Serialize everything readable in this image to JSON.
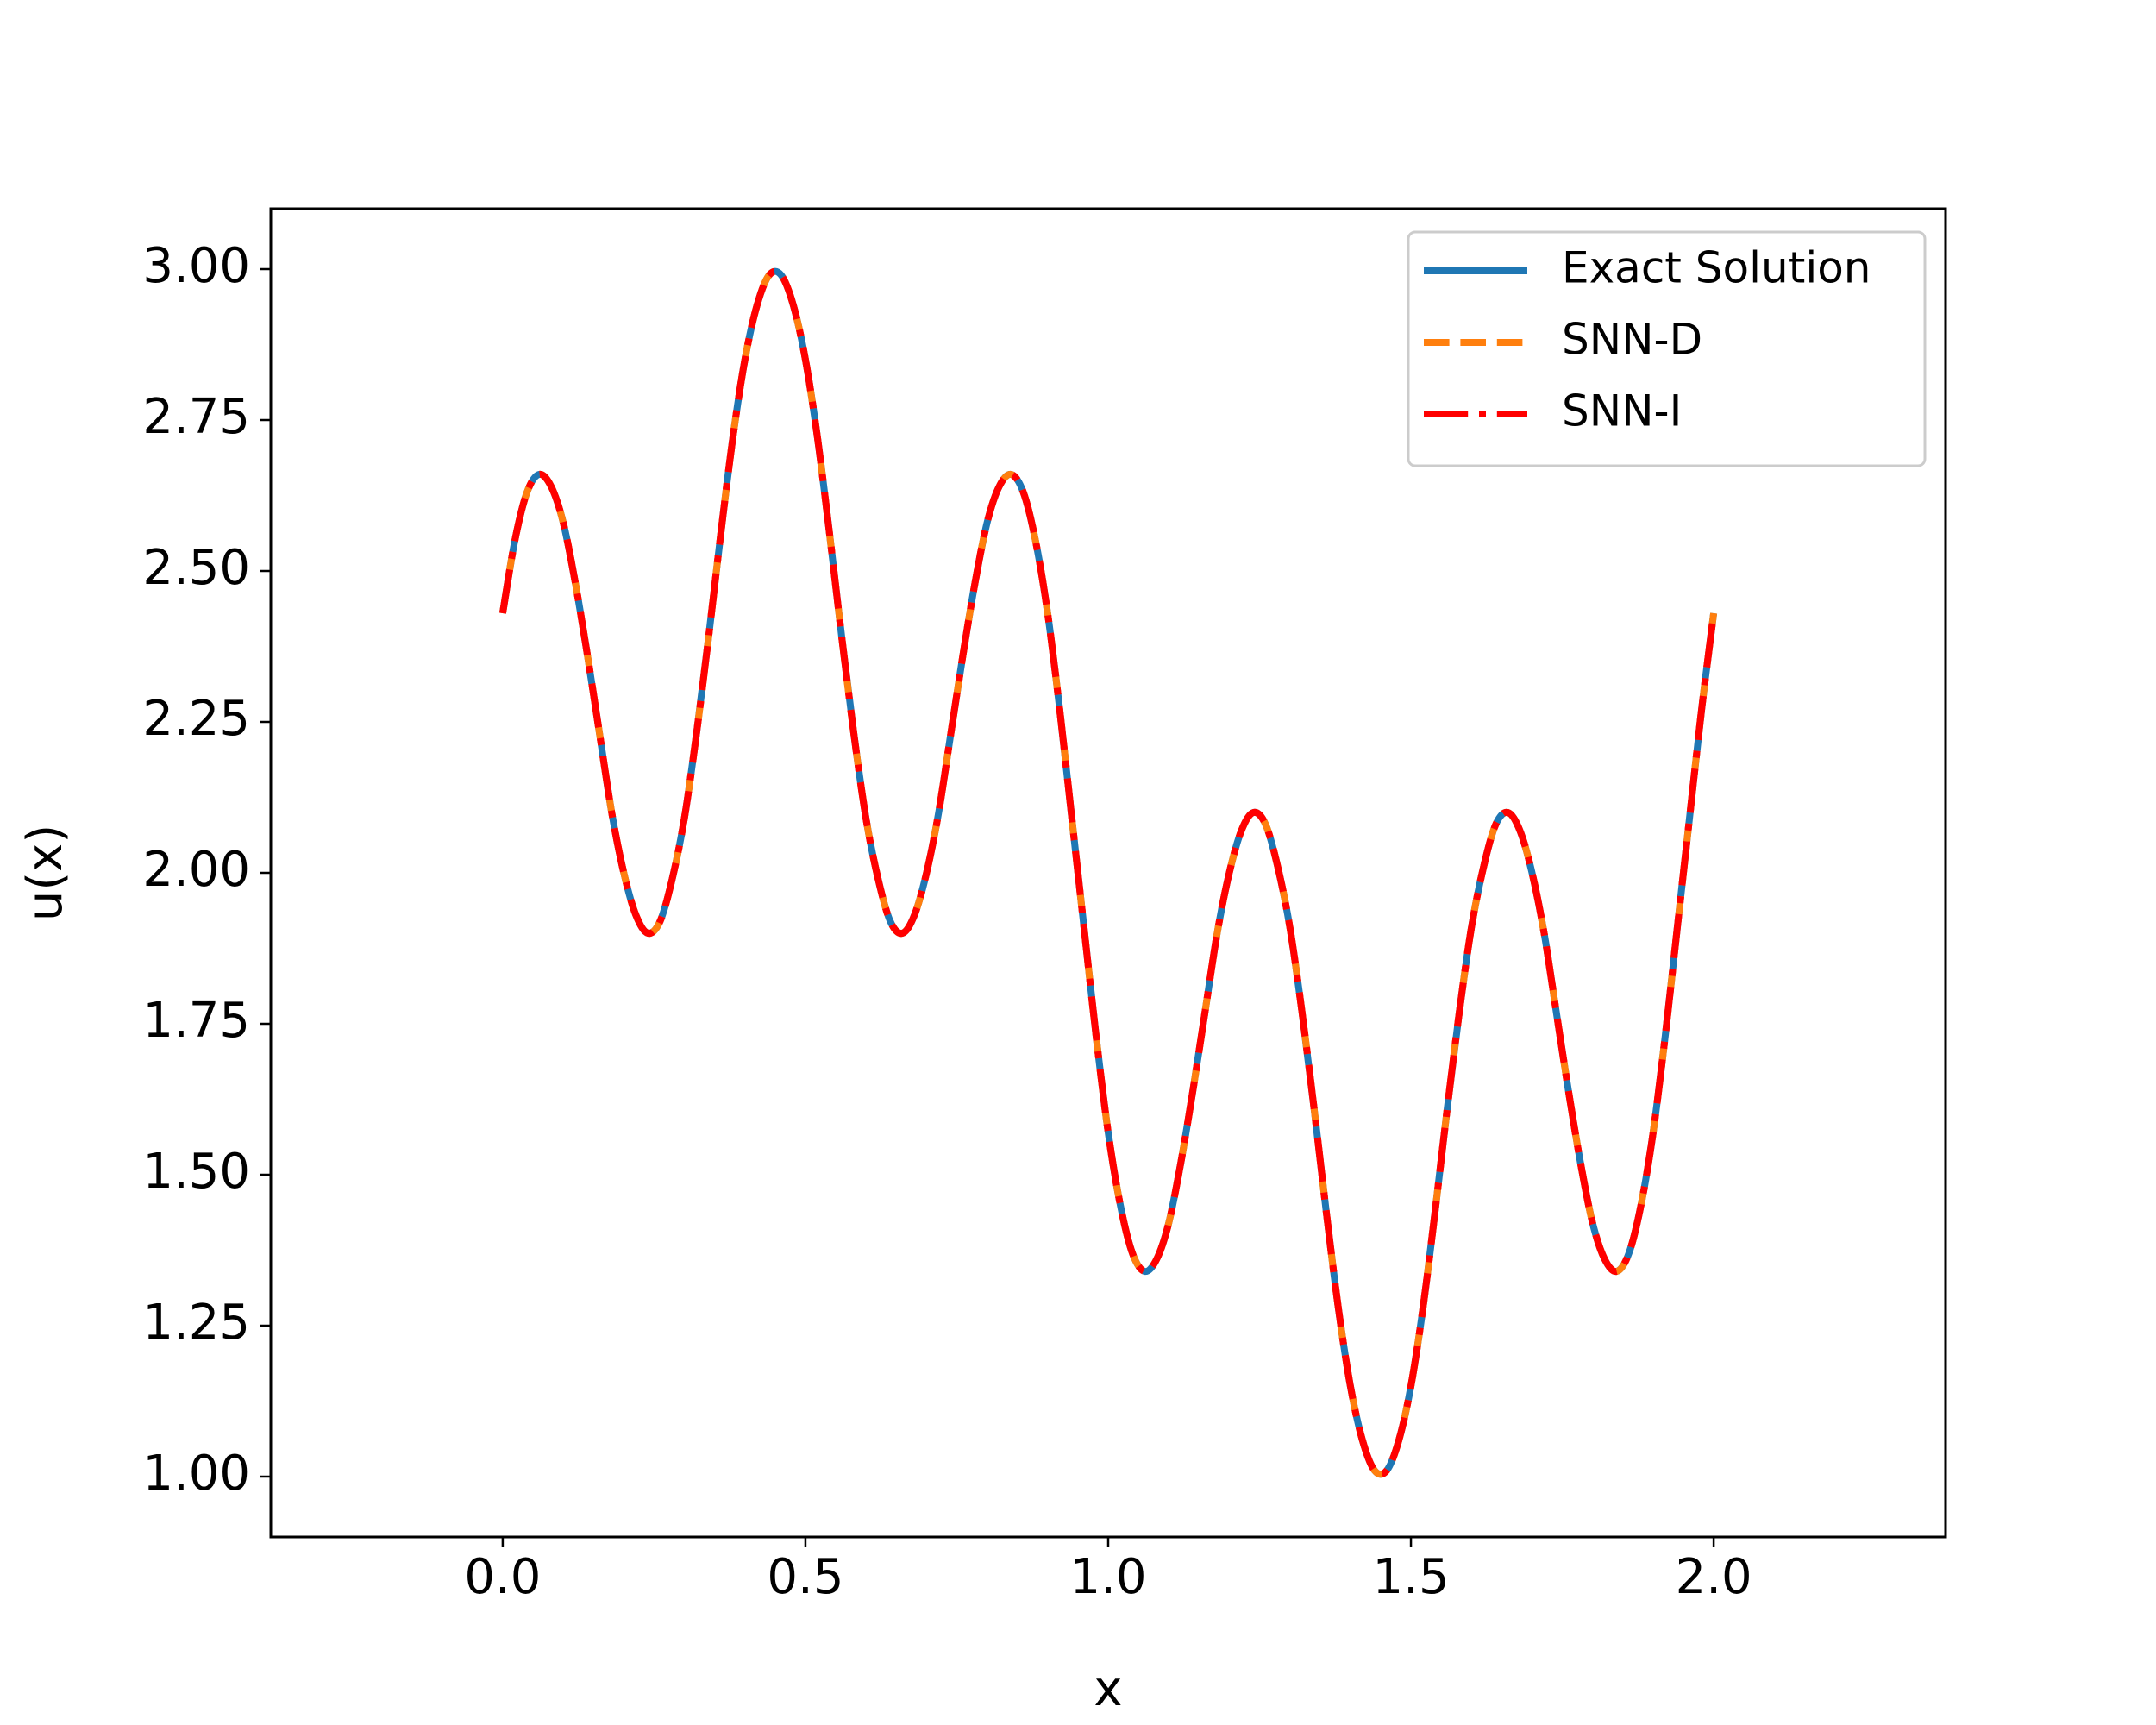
{
  "chart_data": {
    "type": "line",
    "xlabel": "x",
    "ylabel": "u(x)",
    "x": [
      0,
      0.02,
      0.04,
      0.06,
      0.08,
      0.1,
      0.12,
      0.14,
      0.16,
      0.18,
      0.2,
      0.22,
      0.24,
      0.26,
      0.28,
      0.3,
      0.32,
      0.34,
      0.36,
      0.38,
      0.4,
      0.42,
      0.44,
      0.46,
      0.48,
      0.5,
      0.52,
      0.54,
      0.56,
      0.58,
      0.6,
      0.62,
      0.64,
      0.66,
      0.68,
      0.7,
      0.72,
      0.74,
      0.76,
      0.78,
      0.8,
      0.82,
      0.84,
      0.86,
      0.88,
      0.9,
      0.92,
      0.94,
      0.96,
      0.98,
      1,
      1.02,
      1.04,
      1.06,
      1.08,
      1.1,
      1.12,
      1.14,
      1.16,
      1.18,
      1.2,
      1.22,
      1.24,
      1.26,
      1.28,
      1.3,
      1.32,
      1.34,
      1.36,
      1.38,
      1.4,
      1.42,
      1.44,
      1.46,
      1.48,
      1.5,
      1.52,
      1.54,
      1.56,
      1.58,
      1.6,
      1.62,
      1.64,
      1.66,
      1.68,
      1.7,
      1.72,
      1.74,
      1.76,
      1.78,
      1.8,
      1.82,
      1.84,
      1.86,
      1.88,
      1.9,
      1.92,
      1.94,
      1.96,
      1.98,
      2
    ],
    "series": [
      {
        "name": "Exact Solution",
        "color": "#1f77b4",
        "linestyle": "solid",
        "values": [
          2.43,
          2.55,
          2.63,
          2.66,
          2.64,
          2.58,
          2.48,
          2.36,
          2.23,
          2.1,
          2.0,
          1.93,
          1.9,
          1.92,
          1.99,
          2.09,
          2.23,
          2.39,
          2.56,
          2.72,
          2.85,
          2.94,
          2.99,
          2.99,
          2.94,
          2.85,
          2.72,
          2.56,
          2.39,
          2.23,
          2.09,
          1.99,
          1.92,
          1.9,
          1.93,
          2.0,
          2.1,
          2.23,
          2.36,
          2.48,
          2.58,
          2.64,
          2.66,
          2.63,
          2.55,
          2.43,
          2.27,
          2.09,
          1.91,
          1.73,
          1.57,
          1.45,
          1.37,
          1.34,
          1.36,
          1.42,
          1.52,
          1.64,
          1.77,
          1.9,
          2.0,
          2.07,
          2.1,
          2.08,
          2.01,
          1.91,
          1.77,
          1.61,
          1.44,
          1.28,
          1.15,
          1.06,
          1.01,
          1.01,
          1.06,
          1.15,
          1.28,
          1.44,
          1.61,
          1.77,
          1.91,
          2.01,
          2.08,
          2.1,
          2.07,
          2.0,
          1.9,
          1.77,
          1.64,
          1.52,
          1.42,
          1.36,
          1.34,
          1.37,
          1.45,
          1.57,
          1.73,
          1.91,
          2.09,
          2.27,
          2.43
        ]
      },
      {
        "name": "SNN-D",
        "color": "#ff7f0e",
        "linestyle": "dashed",
        "values": [
          2.43,
          2.55,
          2.63,
          2.66,
          2.64,
          2.58,
          2.48,
          2.36,
          2.23,
          2.1,
          2.0,
          1.93,
          1.9,
          1.92,
          1.99,
          2.09,
          2.23,
          2.39,
          2.56,
          2.72,
          2.85,
          2.94,
          2.99,
          2.99,
          2.94,
          2.85,
          2.72,
          2.56,
          2.39,
          2.23,
          2.09,
          1.99,
          1.92,
          1.9,
          1.93,
          2.0,
          2.1,
          2.23,
          2.36,
          2.48,
          2.58,
          2.64,
          2.66,
          2.63,
          2.55,
          2.43,
          2.27,
          2.09,
          1.91,
          1.73,
          1.57,
          1.45,
          1.37,
          1.34,
          1.36,
          1.42,
          1.52,
          1.64,
          1.77,
          1.9,
          2.0,
          2.07,
          2.1,
          2.08,
          2.01,
          1.91,
          1.77,
          1.61,
          1.44,
          1.28,
          1.15,
          1.06,
          1.01,
          1.01,
          1.06,
          1.15,
          1.28,
          1.44,
          1.61,
          1.77,
          1.91,
          2.01,
          2.08,
          2.1,
          2.07,
          2.0,
          1.9,
          1.77,
          1.64,
          1.52,
          1.42,
          1.36,
          1.34,
          1.37,
          1.45,
          1.57,
          1.73,
          1.91,
          2.09,
          2.27,
          2.43
        ]
      },
      {
        "name": "SNN-I",
        "color": "#ff0000",
        "linestyle": "dashdot",
        "values": [
          2.43,
          2.55,
          2.63,
          2.66,
          2.64,
          2.58,
          2.48,
          2.36,
          2.23,
          2.1,
          2.0,
          1.93,
          1.9,
          1.92,
          1.99,
          2.09,
          2.23,
          2.39,
          2.56,
          2.72,
          2.85,
          2.94,
          2.99,
          2.99,
          2.94,
          2.85,
          2.72,
          2.56,
          2.39,
          2.23,
          2.09,
          1.99,
          1.92,
          1.9,
          1.93,
          2.0,
          2.1,
          2.23,
          2.36,
          2.48,
          2.58,
          2.64,
          2.66,
          2.63,
          2.55,
          2.43,
          2.27,
          2.09,
          1.91,
          1.73,
          1.57,
          1.45,
          1.37,
          1.34,
          1.36,
          1.42,
          1.52,
          1.64,
          1.77,
          1.9,
          2.0,
          2.07,
          2.1,
          2.08,
          2.01,
          1.91,
          1.77,
          1.61,
          1.44,
          1.28,
          1.15,
          1.06,
          1.01,
          1.01,
          1.06,
          1.15,
          1.28,
          1.44,
          1.61,
          1.77,
          1.91,
          2.01,
          2.08,
          2.1,
          2.07,
          2.0,
          1.9,
          1.77,
          1.64,
          1.52,
          1.42,
          1.36,
          1.34,
          1.37,
          1.45,
          1.57,
          1.73,
          1.91,
          2.09,
          2.27,
          2.43
        ]
      }
    ],
    "xlim": [
      -0.383,
      2.383
    ],
    "ylim": [
      0.9,
      3.1
    ],
    "xticks": [
      {
        "value": 0,
        "label": "0.0"
      },
      {
        "value": 0.5,
        "label": "0.5"
      },
      {
        "value": 1,
        "label": "1.0"
      },
      {
        "value": 1.5,
        "label": "1.5"
      },
      {
        "value": 2,
        "label": "2.0"
      }
    ],
    "yticks": [
      {
        "value": 1,
        "label": "1.00"
      },
      {
        "value": 1.25,
        "label": "1.25"
      },
      {
        "value": 1.5,
        "label": "1.50"
      },
      {
        "value": 1.75,
        "label": "1.75"
      },
      {
        "value": 2,
        "label": "2.00"
      },
      {
        "value": 2.25,
        "label": "2.25"
      },
      {
        "value": 2.5,
        "label": "2.50"
      },
      {
        "value": 2.75,
        "label": "2.75"
      },
      {
        "value": 3,
        "label": "3.00"
      }
    ],
    "grid": false,
    "legend": "upper right"
  }
}
